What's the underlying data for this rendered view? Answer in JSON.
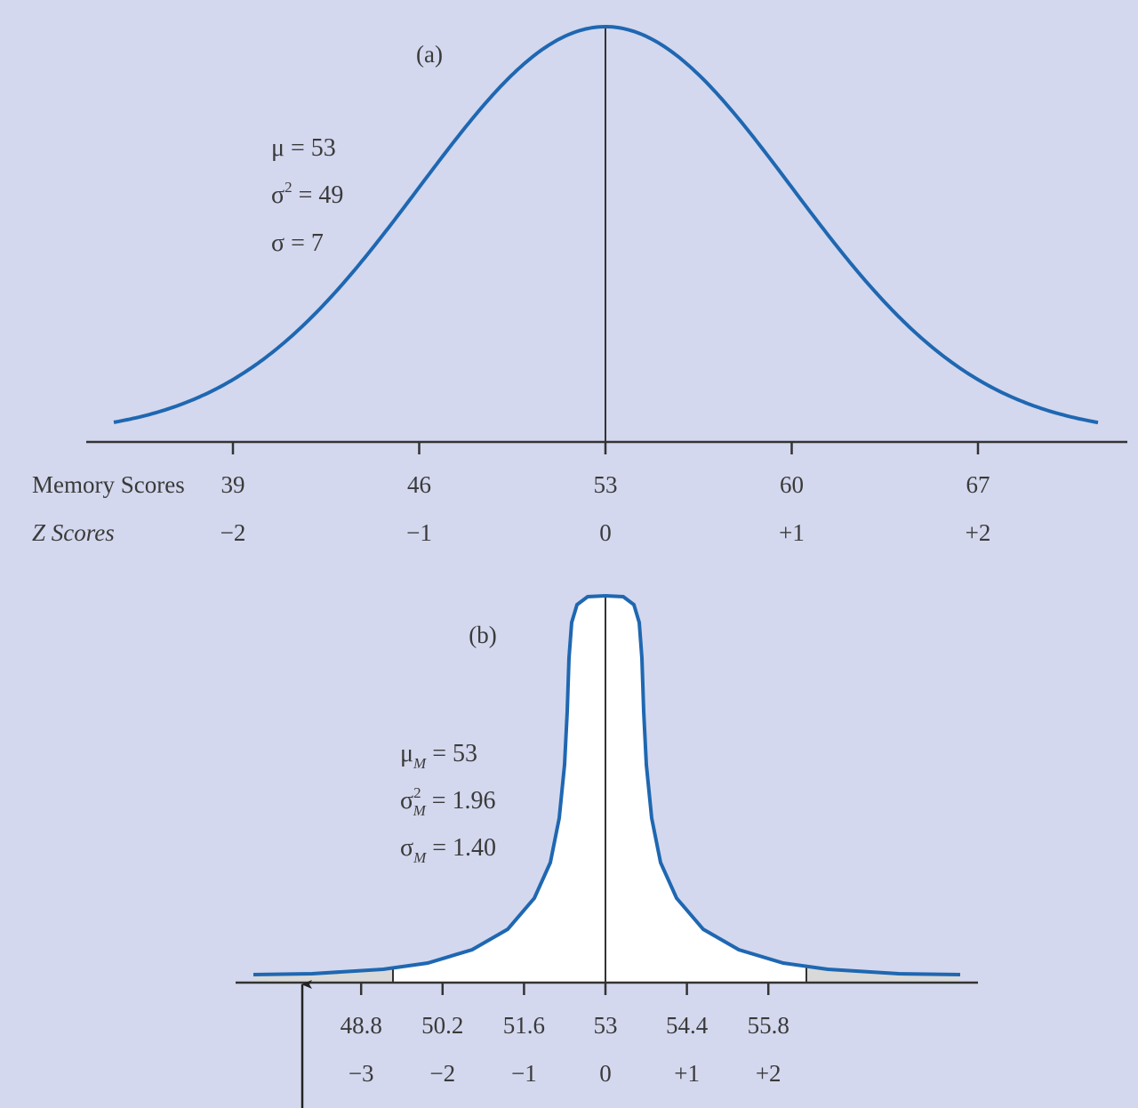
{
  "colors": {
    "background": "#d3d8ee",
    "curve": "#1f67b1",
    "axis": "#333333",
    "tail_shade": "#d9d9d9",
    "center_fill": "#ffffff"
  },
  "chart_data": [
    {
      "type": "line",
      "panel_label": "(a)",
      "distribution": "normal",
      "mean": 53,
      "variance": 49,
      "sd": 7,
      "params_text": {
        "mu": "μ = 53",
        "var_base": "σ",
        "var_sup": "2",
        "var_rest": " = 49",
        "sd": "σ = 7"
      },
      "row_labels": {
        "raw": "Memory Scores",
        "z": "Z Scores"
      },
      "ticks": [
        39,
        46,
        53,
        60,
        67
      ],
      "tick_labels": [
        "39",
        "46",
        "53",
        "60",
        "67"
      ],
      "z_labels": [
        "−2",
        "−1",
        "0",
        "+1",
        "+2"
      ],
      "mean_line": true
    },
    {
      "type": "line",
      "panel_label": "(b)",
      "distribution": "sampling distribution of the mean",
      "mean": 53,
      "variance": 1.96,
      "sd": 1.4,
      "params_text": {
        "mu_base": "μ",
        "mu_sub": "M",
        "mu_rest": " = 53",
        "var_base": "σ",
        "var_sup": "2",
        "var_sub": "M",
        "var_rest": " = 1.96",
        "sd_base": "σ",
        "sd_sub": "M",
        "sd_rest": " = 1.40"
      },
      "ticks": [
        48.8,
        50.2,
        51.6,
        53,
        54.4,
        55.8
      ],
      "tick_labels": [
        "48.8",
        "50.2",
        "51.6",
        "53",
        "54.4",
        "55.8"
      ],
      "z_labels": [
        "−3",
        "−2",
        "−1",
        "0",
        "+1",
        "+2"
      ],
      "shaded_tails": true,
      "mean_line": true,
      "arrow_marker": true
    }
  ]
}
